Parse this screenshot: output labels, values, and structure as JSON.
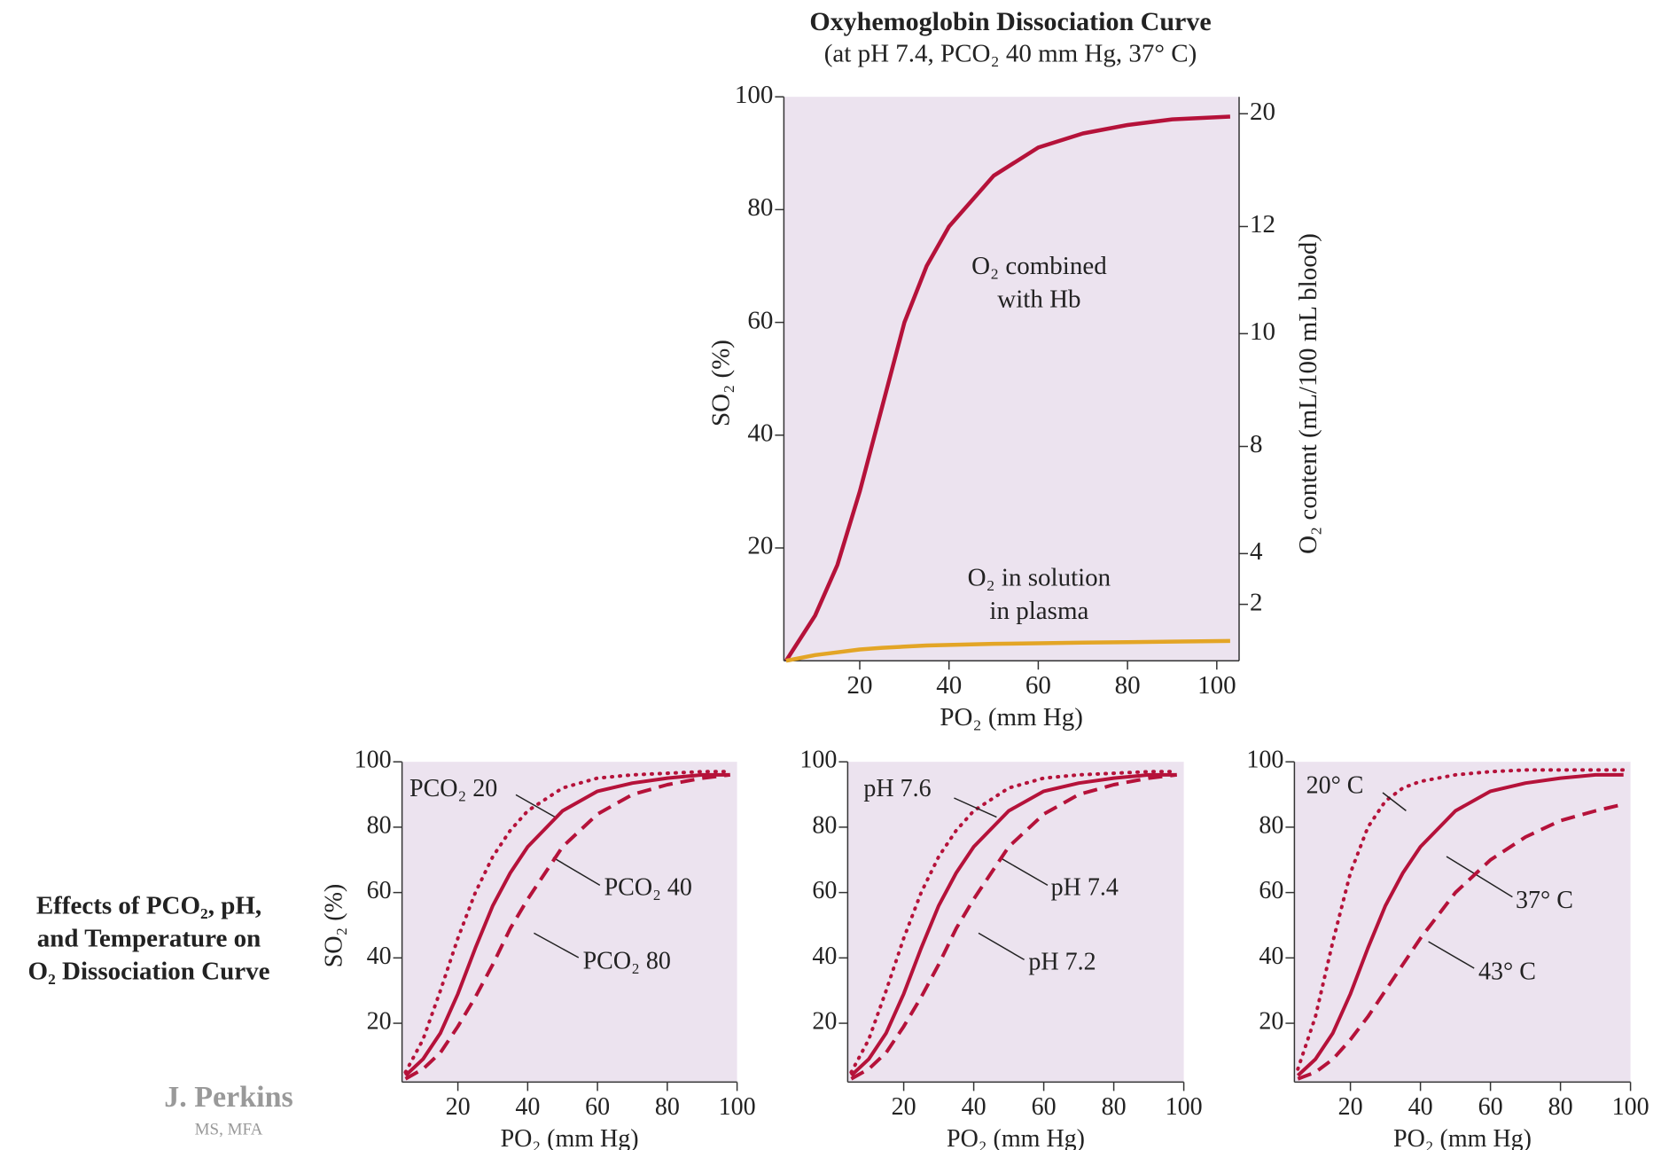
{
  "caption": [
    "Effects of PCO₂, pH,",
    "and Temperature on",
    "O₂ Dissociation Curve"
  ],
  "signature": {
    "name": "J. Perkins",
    "credentials": "MS, MFA"
  },
  "chart_data": [
    {
      "type": "line",
      "title": "Oxyhemoglobin Dissociation Curve",
      "subtitle": "(at pH 7.4, PCO₂ 40 mm Hg, 37° C)",
      "x_label": "PO₂ (mm Hg)",
      "y_label": "SO₂ (%)",
      "y2_label": "O₂ content (mL/100 mL blood)",
      "x": [
        3.5,
        10,
        15,
        20,
        25,
        30,
        35,
        40,
        50,
        60,
        70,
        80,
        90,
        103
      ],
      "series": [
        {
          "name": [
            "O₂ combined",
            "with Hb"
          ],
          "color": "#b5123a",
          "dash": "solid",
          "values": [
            0,
            8,
            17,
            30,
            45,
            60,
            70,
            77,
            86,
            91,
            93.5,
            95,
            96,
            96.5
          ]
        },
        {
          "name": [
            "O₂ in solution",
            "in plasma"
          ],
          "color": "#e3a526",
          "dash": "solid",
          "values": [
            0,
            1,
            1.5,
            2,
            2.3,
            2.5,
            2.7,
            2.8,
            3,
            3.1,
            3.2,
            3.3,
            3.4,
            3.5
          ]
        }
      ],
      "xlim": [
        3,
        105
      ],
      "ylim": [
        0,
        100
      ],
      "xticks": [
        20,
        40,
        60,
        80,
        100
      ],
      "yticks": [
        20,
        40,
        60,
        80,
        100
      ],
      "y2ticks": [
        {
          "value": 20,
          "y": 97
        },
        {
          "value": 12,
          "y": 77
        },
        {
          "value": 10,
          "y": 58
        },
        {
          "value": 8,
          "y": 38
        },
        {
          "value": 4,
          "y": 19
        },
        {
          "value": 2,
          "y": 10
        }
      ],
      "background": "#ece3ef"
    },
    {
      "type": "line",
      "x_label": "PO₂ (mm Hg)",
      "y_label": "SO₂ (%)",
      "x": [
        5,
        10,
        15,
        20,
        25,
        30,
        35,
        40,
        50,
        60,
        70,
        80,
        90,
        98
      ],
      "series": [
        {
          "name": "PCO₂ 20",
          "color": "#b5123a",
          "dash": "dotted",
          "values": [
            5,
            15,
            30,
            46,
            60,
            71,
            79,
            85,
            92,
            95,
            96,
            96.5,
            97,
            97
          ]
        },
        {
          "name": "PCO₂ 40",
          "color": "#b5123a",
          "dash": "solid",
          "values": [
            4,
            9,
            17,
            29,
            43,
            56,
            66,
            74,
            85,
            91,
            93.5,
            95,
            96,
            96
          ]
        },
        {
          "name": "PCO₂ 80",
          "color": "#b5123a",
          "dash": "dashed",
          "values": [
            3,
            6,
            11,
            19,
            28,
            38,
            49,
            58,
            74,
            84,
            90,
            93,
            95,
            96
          ]
        }
      ],
      "xlim": [
        4,
        100
      ],
      "ylim": [
        2,
        100
      ],
      "xticks": [
        20,
        40,
        60,
        80,
        100
      ],
      "yticks": [
        20,
        40,
        60,
        80,
        100
      ],
      "background": "#ece3ef"
    },
    {
      "type": "line",
      "x_label": "PO₂ (mm Hg)",
      "x": [
        5,
        10,
        15,
        20,
        25,
        30,
        35,
        40,
        50,
        60,
        70,
        80,
        90,
        98
      ],
      "series": [
        {
          "name": "pH 7.6",
          "color": "#b5123a",
          "dash": "dotted",
          "values": [
            5,
            15,
            30,
            46,
            60,
            71,
            79,
            85,
            92,
            95,
            96,
            96.5,
            97,
            97
          ]
        },
        {
          "name": "pH 7.4",
          "color": "#b5123a",
          "dash": "solid",
          "values": [
            4,
            9,
            17,
            29,
            43,
            56,
            66,
            74,
            85,
            91,
            93.5,
            95,
            96,
            96
          ]
        },
        {
          "name": "pH 7.2",
          "color": "#b5123a",
          "dash": "dashed",
          "values": [
            3,
            6,
            11,
            19,
            28,
            38,
            49,
            58,
            74,
            84,
            90,
            93,
            95,
            96
          ]
        }
      ],
      "xlim": [
        4,
        100
      ],
      "ylim": [
        2,
        100
      ],
      "xticks": [
        20,
        40,
        60,
        80,
        100
      ],
      "yticks": [
        20,
        40,
        60,
        80,
        100
      ],
      "background": "#ece3ef"
    },
    {
      "type": "line",
      "x_label": "PO₂ (mm Hg)",
      "x": [
        5,
        10,
        15,
        20,
        25,
        30,
        35,
        40,
        50,
        60,
        70,
        80,
        90,
        98
      ],
      "series": [
        {
          "name": "20° C",
          "color": "#b5123a",
          "dash": "dotted",
          "values": [
            6,
            22,
            45,
            66,
            80,
            88,
            92,
            94,
            96,
            97,
            97.5,
            97.5,
            97.5,
            97.5
          ]
        },
        {
          "name": "37° C",
          "color": "#b5123a",
          "dash": "solid",
          "values": [
            4,
            9,
            17,
            29,
            43,
            56,
            66,
            74,
            85,
            91,
            93.5,
            95,
            96,
            96
          ]
        },
        {
          "name": "43° C",
          "color": "#b5123a",
          "dash": "dashed",
          "values": [
            3,
            5,
            9,
            15,
            22,
            30,
            38,
            46,
            60,
            70,
            77,
            82,
            85,
            87
          ]
        }
      ],
      "xlim": [
        4,
        100
      ],
      "ylim": [
        2,
        100
      ],
      "xticks": [
        20,
        40,
        60,
        80,
        100
      ],
      "yticks": [
        20,
        40,
        60,
        80,
        100
      ],
      "background": "#ece3ef"
    }
  ]
}
